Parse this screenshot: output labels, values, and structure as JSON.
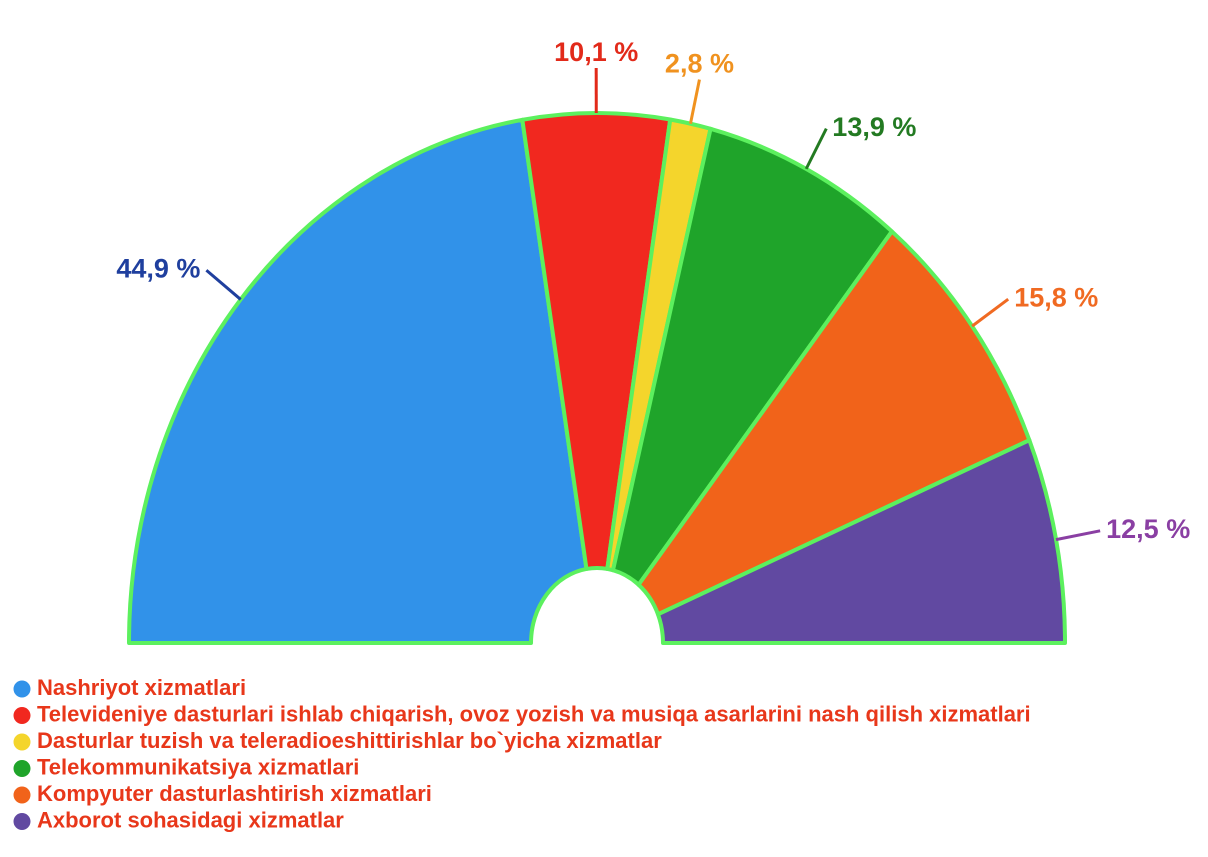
{
  "chart_data": {
    "type": "semi-donut",
    "categories": [
      "Nashriyot xizmatlari",
      "Televideniye dasturlari ishlab chiqarish, ovoz yozish va musiqa asarlarini nash qilish xizmatlari",
      "Dasturlar tuzish va teleradioeshittirishlar bo`yicha xizmatlar",
      "Telekommunikatsiya xizmatlari",
      "Kompyuter dasturlashtirish xizmatlari",
      "Axborot sohasidagi xizmatlar"
    ],
    "values": [
      44.9,
      10.1,
      2.8,
      13.9,
      15.8,
      12.5
    ],
    "value_labels": [
      "44,9 %",
      "10,1 %",
      "2,8 %",
      "13,9 %",
      "15,8 %",
      "12,5 %"
    ],
    "colors": [
      "#3192e9",
      "#f1281f",
      "#f4d52c",
      "#1fa42a",
      "#f1631a",
      "#6149a1"
    ],
    "label_colors": [
      "#1f3f9e",
      "#e22a1a",
      "#f0921f",
      "#237a22",
      "#f06a22",
      "#8a3fa3"
    ],
    "legend_text_color": "#e8371a"
  }
}
